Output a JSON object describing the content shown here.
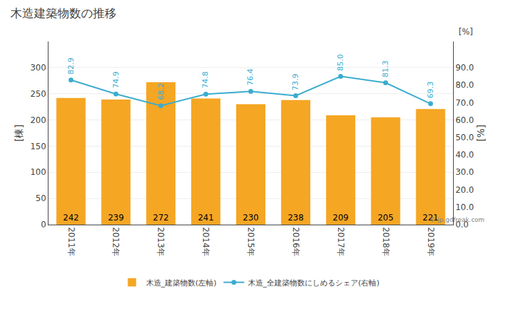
{
  "chart_data": {
    "type": "bar",
    "title": "木造建築物数の推移",
    "categories": [
      "2011年",
      "2012年",
      "2013年",
      "2014年",
      "2015年",
      "2016年",
      "2017年",
      "2018年",
      "2019年"
    ],
    "series": [
      {
        "name": "木造_建築物数(左軸)",
        "type": "bar",
        "color": "#F5A623",
        "values": [
          242,
          239,
          272,
          241,
          230,
          238,
          209,
          205,
          221
        ],
        "data_labels": true
      },
      {
        "name": "木造_全建築物数にしめるシェア(右軸)",
        "type": "line",
        "axis": "y2",
        "color": "#3AACCF",
        "marker": "circle",
        "values": [
          82.9,
          74.9,
          68.2,
          74.8,
          76.4,
          73.9,
          85.0,
          81.3,
          69.3
        ],
        "value_labels": [
          "82.9",
          "74.9",
          "68.2",
          "74.8",
          "76.4",
          "73.9",
          "85.0",
          "81.3",
          "69.3"
        ],
        "data_labels": true
      }
    ],
    "ylabel": "[棟]",
    "y2label": "[%]",
    "ylim": [
      0,
      350
    ],
    "yticks": [
      0,
      50,
      100,
      150,
      200,
      250,
      300
    ],
    "y2lim": [
      0,
      105
    ],
    "y2ticks": [
      {
        "value": 0.0,
        "label": "0.0"
      },
      {
        "value": 10.0,
        "label": "10.0"
      },
      {
        "value": 20.0,
        "label": "20.0"
      },
      {
        "value": 30.0,
        "label": "30.0"
      },
      {
        "value": 40.0,
        "label": "40.0"
      },
      {
        "value": 50.0,
        "label": "50.0"
      },
      {
        "value": 60.0,
        "label": "60.0"
      },
      {
        "value": 70.0,
        "label": "70.0"
      },
      {
        "value": 80.0,
        "label": "80.0"
      },
      {
        "value": 90.0,
        "label": "90.0"
      }
    ],
    "grid": true,
    "legend": "bottom",
    "annotations": [
      {
        "text": "[%]"
      },
      {
        "text": "© jp.gdfreak.com"
      }
    ]
  }
}
